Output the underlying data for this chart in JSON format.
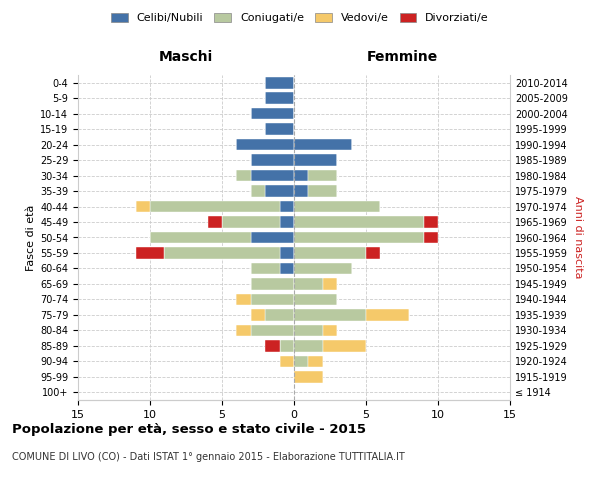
{
  "age_groups": [
    "100+",
    "95-99",
    "90-94",
    "85-89",
    "80-84",
    "75-79",
    "70-74",
    "65-69",
    "60-64",
    "55-59",
    "50-54",
    "45-49",
    "40-44",
    "35-39",
    "30-34",
    "25-29",
    "20-24",
    "15-19",
    "10-14",
    "5-9",
    "0-4"
  ],
  "birth_years": [
    "≤ 1914",
    "1915-1919",
    "1920-1924",
    "1925-1929",
    "1930-1934",
    "1935-1939",
    "1940-1944",
    "1945-1949",
    "1950-1954",
    "1955-1959",
    "1960-1964",
    "1965-1969",
    "1970-1974",
    "1975-1979",
    "1980-1984",
    "1985-1989",
    "1990-1994",
    "1995-1999",
    "2000-2004",
    "2005-2009",
    "2010-2014"
  ],
  "colors": {
    "celibi": "#4472a8",
    "coniugati": "#b8c9a0",
    "vedovi": "#f5c96a",
    "divorziati": "#cc2222"
  },
  "maschi": {
    "celibi": [
      0,
      0,
      0,
      0,
      0,
      0,
      0,
      0,
      1,
      1,
      3,
      1,
      1,
      2,
      3,
      3,
      4,
      2,
      3,
      2,
      2
    ],
    "coniugati": [
      0,
      0,
      0,
      1,
      3,
      2,
      3,
      3,
      2,
      8,
      7,
      4,
      9,
      1,
      1,
      0,
      0,
      0,
      0,
      0,
      0
    ],
    "vedovi": [
      0,
      0,
      1,
      0,
      1,
      1,
      1,
      0,
      0,
      0,
      0,
      0,
      1,
      0,
      0,
      0,
      0,
      0,
      0,
      0,
      0
    ],
    "divorziati": [
      0,
      0,
      0,
      1,
      0,
      0,
      0,
      0,
      0,
      2,
      0,
      1,
      0,
      0,
      0,
      0,
      0,
      0,
      0,
      0,
      0
    ]
  },
  "femmine": {
    "nubili": [
      0,
      0,
      0,
      0,
      0,
      0,
      0,
      0,
      0,
      0,
      0,
      0,
      0,
      1,
      1,
      3,
      4,
      0,
      0,
      0,
      0
    ],
    "coniugate": [
      0,
      0,
      1,
      2,
      2,
      5,
      3,
      2,
      4,
      5,
      9,
      9,
      6,
      2,
      2,
      0,
      0,
      0,
      0,
      0,
      0
    ],
    "vedove": [
      0,
      2,
      1,
      3,
      1,
      3,
      0,
      1,
      0,
      0,
      0,
      0,
      0,
      0,
      0,
      0,
      0,
      0,
      0,
      0,
      0
    ],
    "divorziate": [
      0,
      0,
      0,
      0,
      0,
      0,
      0,
      0,
      0,
      1,
      1,
      1,
      0,
      0,
      0,
      0,
      0,
      0,
      0,
      0,
      0
    ]
  },
  "title": "Popolazione per età, sesso e stato civile - 2015",
  "subtitle": "COMUNE DI LIVO (CO) - Dati ISTAT 1° gennaio 2015 - Elaborazione TUTTITALIA.IT",
  "xlabel_left": "Maschi",
  "xlabel_right": "Femmine",
  "ylabel_left": "Fasce di età",
  "ylabel_right": "Anni di nascita",
  "xlim": 15,
  "legend_labels": [
    "Celibi/Nubili",
    "Coniugati/e",
    "Vedovi/e",
    "Divorziati/e"
  ],
  "legend_colors": [
    "#4472a8",
    "#b8c9a0",
    "#f5c96a",
    "#cc2222"
  ],
  "bg_color": "#ffffff",
  "grid_color": "#cccccc"
}
